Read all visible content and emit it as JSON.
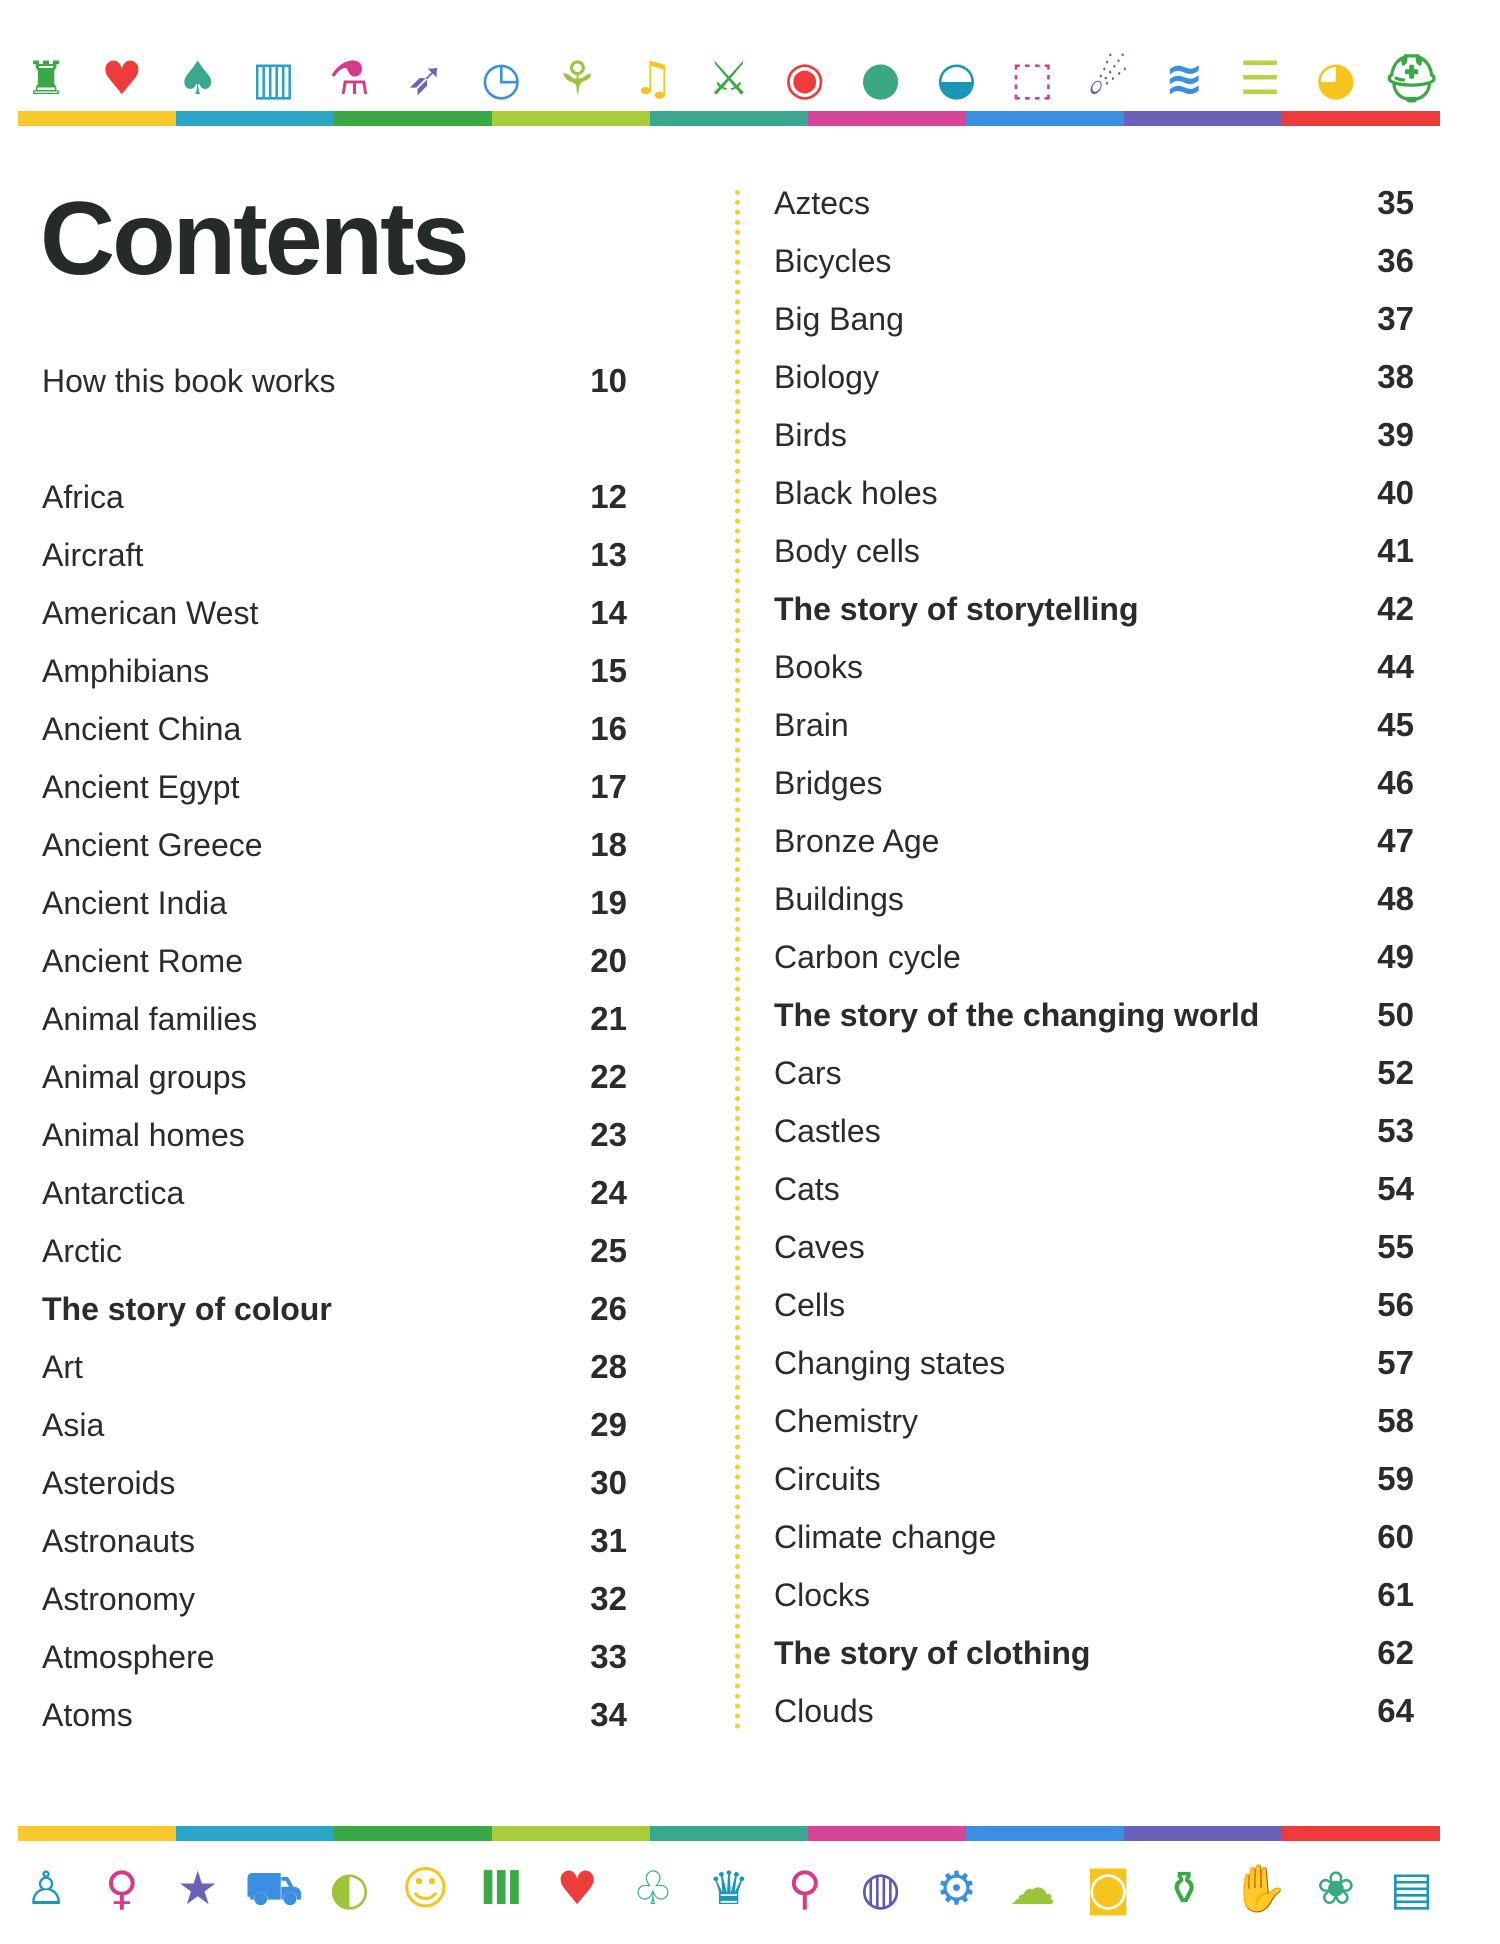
{
  "top_icons": [
    {
      "name": "castle-icon",
      "glyph": "♜",
      "color": "#3aa845"
    },
    {
      "name": "heart-organ-icon",
      "glyph": "♥",
      "color": "#ee3b3b"
    },
    {
      "name": "mushroom-icon",
      "glyph": "♠",
      "color": "#3aa890"
    },
    {
      "name": "buildings-icon",
      "glyph": "▥",
      "color": "#2aa0c8"
    },
    {
      "name": "flask-icon",
      "glyph": "⚗",
      "color": "#d63a8a"
    },
    {
      "name": "rocket-icon",
      "glyph": "➶",
      "color": "#6a62b8"
    },
    {
      "name": "clock-icon",
      "glyph": "◷",
      "color": "#3a8fe0"
    },
    {
      "name": "wheat-icon",
      "glyph": "⚘",
      "color": "#9bc43a"
    },
    {
      "name": "music-note-icon",
      "glyph": "♫",
      "color": "#f5c51e"
    },
    {
      "name": "sword-icon",
      "glyph": "⚔",
      "color": "#3aa845"
    },
    {
      "name": "eye-icon",
      "glyph": "◉",
      "color": "#ee3b3b"
    },
    {
      "name": "apple-icon",
      "glyph": "●",
      "color": "#3aa880"
    },
    {
      "name": "wave-icon",
      "glyph": "◒",
      "color": "#1a96b8"
    },
    {
      "name": "cube-icon",
      "glyph": "⬚",
      "color": "#d63a8a"
    },
    {
      "name": "comet-icon",
      "glyph": "☄",
      "color": "#5a58b8"
    },
    {
      "name": "wifi-icon",
      "glyph": "≋",
      "color": "#3a8fe0"
    },
    {
      "name": "water-layers-icon",
      "glyph": "☰",
      "color": "#b5d445"
    },
    {
      "name": "palette-icon",
      "glyph": "◕",
      "color": "#f5c51e"
    },
    {
      "name": "helmet-icon",
      "glyph": "⛑",
      "color": "#3aa845"
    }
  ],
  "bottom_icons": [
    {
      "name": "person-icon",
      "glyph": "♙",
      "color": "#1a96b8"
    },
    {
      "name": "lightbulb-icon",
      "glyph": "♀",
      "color": "#d63a8a"
    },
    {
      "name": "star-icon",
      "glyph": "★",
      "color": "#6a62b8"
    },
    {
      "name": "truck-icon",
      "glyph": "⛟",
      "color": "#3a8fe0"
    },
    {
      "name": "globe-icon",
      "glyph": "◐",
      "color": "#9bc43a"
    },
    {
      "name": "theatre-masks-icon",
      "glyph": "☺",
      "color": "#f5c51e"
    },
    {
      "name": "column-icon",
      "glyph": "Ⅲ",
      "color": "#3aa845"
    },
    {
      "name": "heart-organ-icon",
      "glyph": "♥",
      "color": "#ee3b3b"
    },
    {
      "name": "leaf-icon",
      "glyph": "♧",
      "color": "#3aa890"
    },
    {
      "name": "crown-icon",
      "glyph": "♛",
      "color": "#1a96b8"
    },
    {
      "name": "microscope-icon",
      "glyph": "⚲",
      "color": "#d63a8a"
    },
    {
      "name": "cell-icon",
      "glyph": "◍",
      "color": "#5a58b8"
    },
    {
      "name": "gear-icon",
      "glyph": "⚙",
      "color": "#3a8fe0"
    },
    {
      "name": "storm-cloud-icon",
      "glyph": "☁",
      "color": "#9bc43a"
    },
    {
      "name": "camera-icon",
      "glyph": "◙",
      "color": "#f5c51e"
    },
    {
      "name": "vase-icon",
      "glyph": "⚱",
      "color": "#3aa845"
    },
    {
      "name": "hand-icon",
      "glyph": "✋",
      "color": "#ee3b3b"
    },
    {
      "name": "paw-icon",
      "glyph": "❀",
      "color": "#3aa880"
    },
    {
      "name": "books-icon",
      "glyph": "▤",
      "color": "#1a96b8"
    }
  ],
  "bar_colors": [
    "#f7c92e",
    "#2ba6c6",
    "#3aa845",
    "#a8cd3a",
    "#3aa890",
    "#d6459a",
    "#3a8fe0",
    "#6a62b8",
    "#ee3b3b"
  ],
  "title": "Contents",
  "intro": {
    "title": "How this book works",
    "page": "10"
  },
  "left_entries": [
    {
      "title": "Africa",
      "page": "12"
    },
    {
      "title": "Aircraft",
      "page": "13"
    },
    {
      "title": "American West",
      "page": "14"
    },
    {
      "title": "Amphibians",
      "page": "15"
    },
    {
      "title": "Ancient China",
      "page": "16"
    },
    {
      "title": "Ancient Egypt",
      "page": "17"
    },
    {
      "title": "Ancient Greece",
      "page": "18"
    },
    {
      "title": "Ancient India",
      "page": "19"
    },
    {
      "title": "Ancient Rome",
      "page": "20"
    },
    {
      "title": "Animal families",
      "page": "21"
    },
    {
      "title": "Animal groups",
      "page": "22"
    },
    {
      "title": "Animal homes",
      "page": "23"
    },
    {
      "title": "Antarctica",
      "page": "24"
    },
    {
      "title": "Arctic",
      "page": "25"
    },
    {
      "title": "The story of colour",
      "page": "26",
      "bold": true
    },
    {
      "title": "Art",
      "page": "28"
    },
    {
      "title": "Asia",
      "page": "29"
    },
    {
      "title": "Asteroids",
      "page": "30"
    },
    {
      "title": "Astronauts",
      "page": "31"
    },
    {
      "title": "Astronomy",
      "page": "32"
    },
    {
      "title": "Atmosphere",
      "page": "33"
    },
    {
      "title": "Atoms",
      "page": "34"
    }
  ],
  "right_entries": [
    {
      "title": "Aztecs",
      "page": "35"
    },
    {
      "title": "Bicycles",
      "page": "36"
    },
    {
      "title": "Big Bang",
      "page": "37"
    },
    {
      "title": "Biology",
      "page": "38"
    },
    {
      "title": "Birds",
      "page": "39"
    },
    {
      "title": "Black holes",
      "page": "40"
    },
    {
      "title": "Body cells",
      "page": "41"
    },
    {
      "title": "The story of storytelling",
      "page": "42",
      "bold": true
    },
    {
      "title": "Books",
      "page": "44"
    },
    {
      "title": "Brain",
      "page": "45"
    },
    {
      "title": "Bridges",
      "page": "46"
    },
    {
      "title": "Bronze Age",
      "page": "47"
    },
    {
      "title": "Buildings",
      "page": "48"
    },
    {
      "title": "Carbon cycle",
      "page": "49"
    },
    {
      "title": "The story of the changing world",
      "page": "50",
      "bold": true
    },
    {
      "title": "Cars",
      "page": "52"
    },
    {
      "title": "Castles",
      "page": "53"
    },
    {
      "title": "Cats",
      "page": "54"
    },
    {
      "title": "Caves",
      "page": "55"
    },
    {
      "title": "Cells",
      "page": "56"
    },
    {
      "title": "Changing states",
      "page": "57"
    },
    {
      "title": "Chemistry",
      "page": "58"
    },
    {
      "title": "Circuits",
      "page": "59"
    },
    {
      "title": "Climate change",
      "page": "60"
    },
    {
      "title": "Clocks",
      "page": "61"
    },
    {
      "title": "The story of clothing",
      "page": "62",
      "bold": true
    },
    {
      "title": "Clouds",
      "page": "64"
    }
  ]
}
